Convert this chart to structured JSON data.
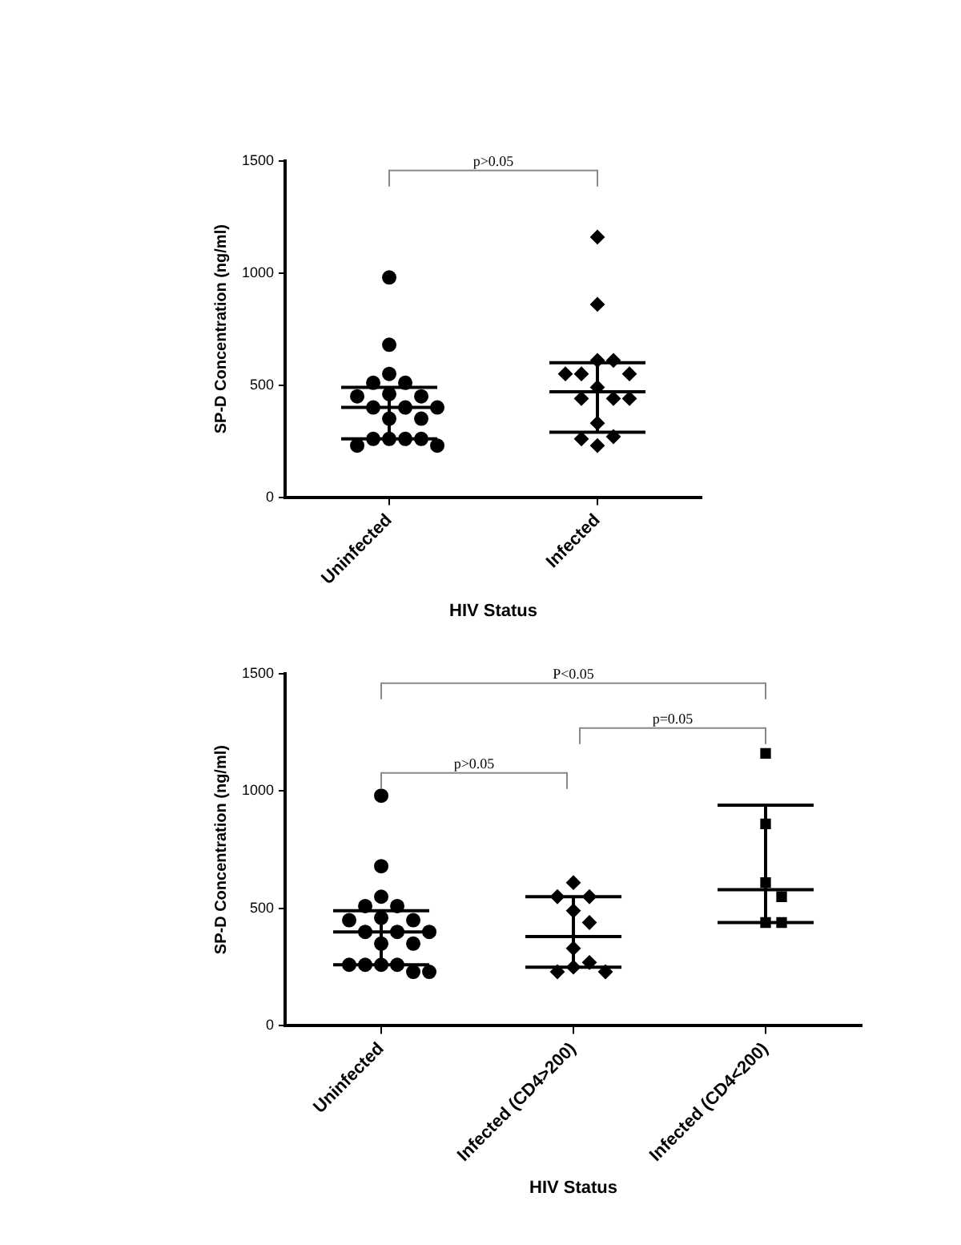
{
  "chart_data": [
    {
      "type": "scatter",
      "xlabel": "HIV Status",
      "ylabel": "SP-D Concentration (ng/ml)",
      "categories": [
        "Uninfected",
        "Infected"
      ],
      "ylim": [
        0,
        1500
      ],
      "yticks": [
        0,
        500,
        1000,
        1500
      ],
      "grid": false,
      "legend": false,
      "annotations": [
        "p>0.05"
      ],
      "series": [
        {
          "color": "#000000",
          "marker": "circle",
          "x": [
            "Uninfected",
            "Uninfected",
            "Uninfected",
            "Uninfected",
            "Uninfected",
            "Uninfected",
            "Uninfected",
            "Uninfected",
            "Uninfected",
            "Uninfected",
            "Uninfected",
            "Uninfected",
            "Uninfected",
            "Uninfected",
            "Uninfected",
            "Uninfected",
            "Uninfected",
            "Uninfected",
            "Uninfected"
          ],
          "values": [
            980,
            680,
            550,
            510,
            510,
            460,
            450,
            450,
            400,
            400,
            400,
            350,
            350,
            260,
            260,
            260,
            260,
            230,
            230
          ]
        },
        {
          "color": "#000000",
          "marker": "diamond",
          "x": [
            "Infected",
            "Infected",
            "Infected",
            "Infected",
            "Infected",
            "Infected",
            "Infected",
            "Infected",
            "Infected",
            "Infected",
            "Infected",
            "Infected",
            "Infected",
            "Infected",
            "Infected"
          ],
          "values": [
            1160,
            860,
            610,
            610,
            550,
            550,
            550,
            490,
            440,
            440,
            440,
            330,
            270,
            260,
            230
          ]
        },
        {
          "type": "box",
          "color": "#000000",
          "boxes": [
            {
              "low": 260,
              "q1": 260,
              "median": 400,
              "q3": 490,
              "high": 490
            },
            {
              "low": 290,
              "q1": 290,
              "median": 470,
              "q3": 600,
              "high": 600
            }
          ]
        }
      ]
    },
    {
      "type": "scatter",
      "xlabel": "HIV Status",
      "ylabel": "SP-D Concentration (ng/ml)",
      "categories": [
        "Uninfected",
        "Infected (CD4>200)",
        "Infected (CD4<200)"
      ],
      "ylim": [
        0,
        1500
      ],
      "yticks": [
        0,
        500,
        1000,
        1500
      ],
      "grid": false,
      "legend": false,
      "annotations": [
        "P<0.05",
        "p=0.05",
        "p>0.05"
      ],
      "series": [
        {
          "color": "#000000",
          "marker": "circle",
          "x": [
            "Uninfected",
            "Uninfected",
            "Uninfected",
            "Uninfected",
            "Uninfected",
            "Uninfected",
            "Uninfected",
            "Uninfected",
            "Uninfected",
            "Uninfected",
            "Uninfected",
            "Uninfected",
            "Uninfected",
            "Uninfected",
            "Uninfected",
            "Uninfected",
            "Uninfected",
            "Uninfected",
            "Uninfected"
          ],
          "values": [
            980,
            680,
            550,
            510,
            510,
            460,
            450,
            450,
            400,
            400,
            400,
            350,
            350,
            260,
            260,
            260,
            260,
            230,
            230
          ]
        },
        {
          "color": "#000000",
          "marker": "diamond",
          "x": [
            "Infected (CD4>200)",
            "Infected (CD4>200)",
            "Infected (CD4>200)",
            "Infected (CD4>200)",
            "Infected (CD4>200)",
            "Infected (CD4>200)",
            "Infected (CD4>200)",
            "Infected (CD4>200)",
            "Infected (CD4>200)",
            "Infected (CD4>200)"
          ],
          "values": [
            610,
            550,
            550,
            490,
            440,
            330,
            270,
            250,
            230,
            230
          ]
        },
        {
          "color": "#000000",
          "marker": "square",
          "x": [
            "Infected (CD4<200)",
            "Infected (CD4<200)",
            "Infected (CD4<200)",
            "Infected (CD4<200)",
            "Infected (CD4<200)",
            "Infected (CD4<200)"
          ],
          "values": [
            1160,
            860,
            610,
            550,
            440,
            440
          ]
        },
        {
          "type": "box",
          "color": "#000000",
          "boxes": [
            {
              "low": 260,
              "q1": 260,
              "median": 400,
              "q3": 490,
              "high": 490
            },
            {
              "low": 250,
              "q1": 250,
              "median": 380,
              "q3": 550,
              "high": 550
            },
            {
              "low": 440,
              "q1": 440,
              "median": 580,
              "q3": 940,
              "high": 940
            }
          ]
        }
      ]
    }
  ]
}
